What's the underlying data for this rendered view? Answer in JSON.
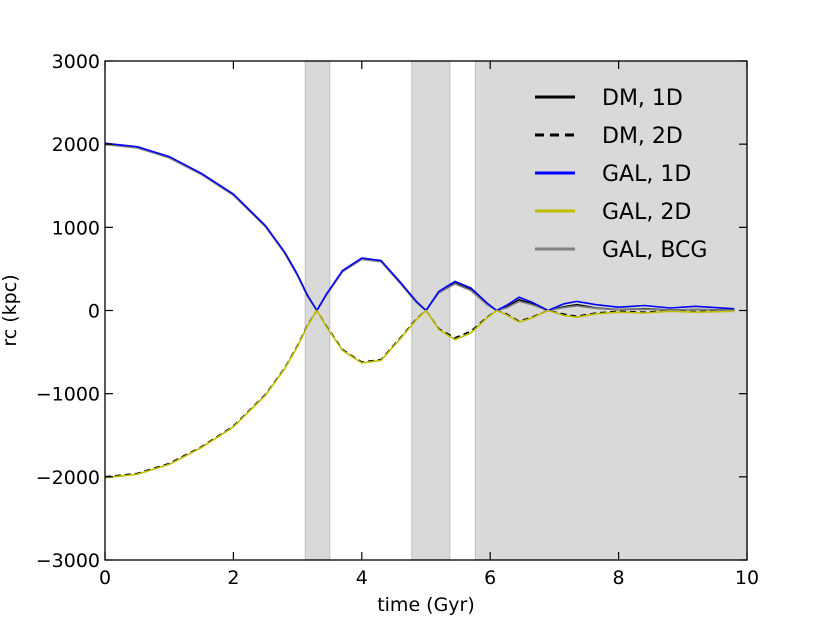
{
  "chart_data": {
    "type": "line",
    "title": "",
    "xlabel": "time (Gyr)",
    "ylabel": "rc (kpc)",
    "xlim": [
      0,
      10
    ],
    "ylim": [
      -3000,
      3000
    ],
    "x_ticks": [
      "0",
      "2",
      "4",
      "6",
      "8",
      "10"
    ],
    "y_ticks": [
      "3000",
      "2000",
      "1000",
      "0",
      "−1000",
      "−2000",
      "−3000"
    ],
    "x_tick_values": [
      0,
      2,
      4,
      6,
      8,
      10
    ],
    "y_tick_values": [
      3000,
      2000,
      1000,
      0,
      -1000,
      -2000,
      -3000
    ],
    "grid": false,
    "legend_position": "top-right",
    "shaded_intervals": [
      [
        3.12,
        3.5
      ],
      [
        4.78,
        5.37
      ],
      [
        5.77,
        10
      ]
    ],
    "series": [
      {
        "name": "DM, 1D",
        "color": "#000000",
        "style": "solid",
        "x": [
          0,
          0.5,
          1.0,
          1.5,
          2.0,
          2.5,
          2.8,
          3.0,
          3.15,
          3.3,
          3.45,
          3.7,
          4.0,
          4.3,
          4.6,
          4.85,
          5.0,
          5.2,
          5.45,
          5.7,
          5.95,
          6.1,
          6.25,
          6.45,
          6.65,
          6.9,
          7.15,
          7.35,
          7.65,
          8.0,
          8.4,
          8.8,
          9.2,
          9.8
        ],
        "y": [
          2000,
          1960,
          1840,
          1640,
          1390,
          1010,
          690,
          420,
          180,
          0,
          190,
          470,
          620,
          590,
          330,
          100,
          0,
          220,
          330,
          250,
          80,
          0,
          40,
          130,
          80,
          0,
          45,
          70,
          30,
          10,
          20,
          5,
          12,
          5
        ]
      },
      {
        "name": "DM, 2D",
        "color": "#000000",
        "style": "dashed",
        "x": [
          0,
          0.5,
          1.0,
          1.5,
          2.0,
          2.5,
          2.8,
          3.0,
          3.15,
          3.3,
          3.45,
          3.7,
          4.0,
          4.3,
          4.6,
          4.85,
          5.0,
          5.2,
          5.45,
          5.7,
          5.95,
          6.1,
          6.25,
          6.45,
          6.65,
          6.9,
          7.15,
          7.35,
          7.65,
          8.0,
          8.4,
          8.8,
          9.2,
          9.8
        ],
        "y": [
          -2000,
          -1960,
          -1840,
          -1640,
          -1390,
          -1010,
          -690,
          -420,
          -180,
          0,
          -190,
          -470,
          -620,
          -590,
          -330,
          -100,
          0,
          -220,
          -330,
          -250,
          -80,
          0,
          -40,
          -130,
          -80,
          0,
          -45,
          -70,
          -30,
          -10,
          -20,
          -5,
          -12,
          -5
        ]
      },
      {
        "name": "GAL, 1D",
        "color": "#0000ff",
        "style": "solid",
        "x": [
          0,
          0.5,
          1.0,
          1.5,
          2.0,
          2.5,
          2.8,
          3.0,
          3.15,
          3.3,
          3.45,
          3.7,
          4.0,
          4.3,
          4.6,
          4.85,
          5.0,
          5.2,
          5.45,
          5.7,
          5.95,
          6.1,
          6.25,
          6.45,
          6.65,
          6.9,
          7.15,
          7.35,
          7.65,
          8.0,
          8.4,
          8.8,
          9.2,
          9.8
        ],
        "y": [
          2010,
          1970,
          1850,
          1650,
          1400,
          1020,
          700,
          430,
          190,
          0,
          200,
          480,
          630,
          600,
          340,
          110,
          0,
          230,
          350,
          270,
          90,
          0,
          60,
          160,
          100,
          0,
          80,
          110,
          70,
          40,
          60,
          30,
          50,
          20
        ]
      },
      {
        "name": "GAL, 2D",
        "color": "#bfbf00",
        "style": "solid",
        "x": [
          0,
          0.5,
          1.0,
          1.5,
          2.0,
          2.5,
          2.8,
          3.0,
          3.15,
          3.3,
          3.45,
          3.7,
          4.0,
          4.3,
          4.6,
          4.85,
          5.0,
          5.2,
          5.45,
          5.7,
          5.95,
          6.1,
          6.25,
          6.45,
          6.65,
          6.9,
          7.15,
          7.35,
          7.65,
          8.0,
          8.4,
          8.8,
          9.2,
          9.8
        ],
        "y": [
          -2010,
          -1970,
          -1850,
          -1650,
          -1400,
          -1020,
          -700,
          -430,
          -190,
          0,
          -200,
          -480,
          -630,
          -600,
          -340,
          -110,
          0,
          -230,
          -350,
          -270,
          -90,
          0,
          -50,
          -140,
          -90,
          0,
          -60,
          -80,
          -40,
          -20,
          -30,
          -10,
          -20,
          -10
        ]
      },
      {
        "name": "GAL, BCG",
        "color": "#808080",
        "style": "solid",
        "x": [
          0,
          0.5,
          1.0,
          1.5,
          2.0,
          2.5,
          2.8,
          3.0,
          3.15,
          3.3,
          3.45,
          3.7,
          4.0,
          4.3,
          4.6,
          4.85,
          5.0,
          5.2,
          5.45,
          5.7,
          5.95,
          6.1,
          6.25,
          6.45,
          6.65,
          6.9,
          7.15,
          7.35,
          7.65,
          8.0,
          8.4,
          8.8,
          9.2,
          9.8
        ],
        "y": [
          1995,
          1955,
          1835,
          1635,
          1385,
          1005,
          685,
          415,
          175,
          0,
          185,
          465,
          615,
          585,
          325,
          95,
          0,
          210,
          320,
          240,
          70,
          0,
          30,
          110,
          70,
          0,
          35,
          55,
          25,
          8,
          15,
          4,
          10,
          4
        ]
      }
    ]
  }
}
